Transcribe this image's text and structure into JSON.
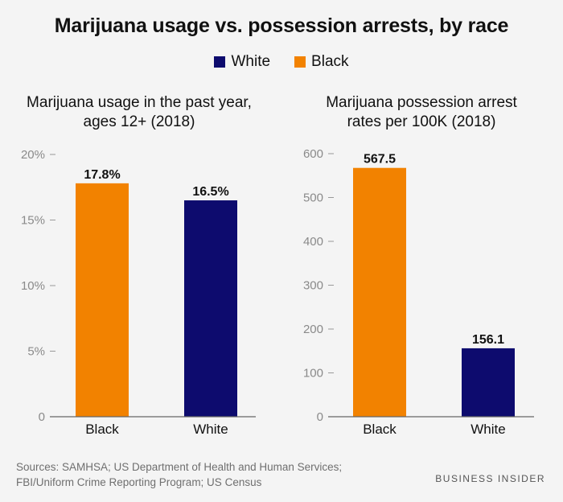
{
  "title": "Marijuana usage vs. possession arrests, by race",
  "legend": [
    {
      "label": "White",
      "color": "#0d0b6e"
    },
    {
      "label": "Black",
      "color": "#f28200"
    }
  ],
  "chart_data": [
    {
      "type": "bar",
      "title_lines": [
        "Marijuana usage in the past year,",
        "ages 12+ (2018)"
      ],
      "categories": [
        "Black",
        "White"
      ],
      "values": [
        17.8,
        16.5
      ],
      "value_labels": [
        "17.8%",
        "16.5%"
      ],
      "colors": [
        "#f28200",
        "#0d0b6e"
      ],
      "ylim": [
        0,
        20
      ],
      "yticks": [
        0,
        5,
        10,
        15,
        20
      ],
      "ytick_labels": [
        "0",
        "5%",
        "10%",
        "15%",
        "20%"
      ],
      "grid": false
    },
    {
      "type": "bar",
      "title_lines": [
        "Marijuana possession arrest",
        "rates per 100K (2018)"
      ],
      "categories": [
        "Black",
        "White"
      ],
      "values": [
        567.5,
        156.1
      ],
      "value_labels": [
        "567.5",
        "156.1"
      ],
      "colors": [
        "#f28200",
        "#0d0b6e"
      ],
      "ylim": [
        0,
        600
      ],
      "yticks": [
        0,
        100,
        200,
        300,
        400,
        500,
        600
      ],
      "ytick_labels": [
        "0",
        "100",
        "200",
        "300",
        "400",
        "500",
        "600"
      ],
      "grid": false
    }
  ],
  "footer": {
    "sources_line1": "Sources: SAMHSA; US Department of Health and Human Services;",
    "sources_line2": "FBI/Uniform Crime Reporting Program; US Census",
    "brand": "BUSINESS INSIDER"
  }
}
